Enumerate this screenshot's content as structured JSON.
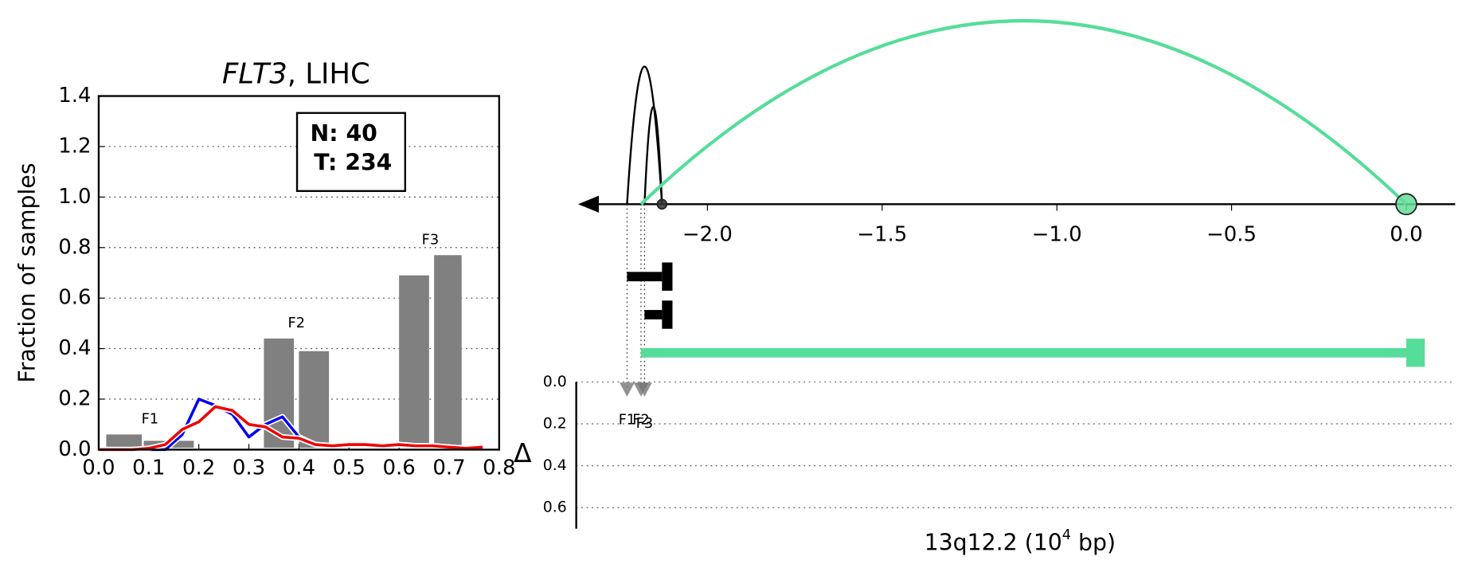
{
  "chart_data": [
    {
      "type": "histogram_overlay",
      "title_gene": "FLT3",
      "title_rest": ", LIHC",
      "y_label": "Fraction of samples",
      "xlim": [
        0,
        0.8
      ],
      "xticks": [
        {
          "value": 0,
          "label": "0.0"
        },
        {
          "value": 0.1,
          "label": "0.1"
        },
        {
          "value": 0.2,
          "label": "0.2"
        },
        {
          "value": 0.3,
          "label": "0.3"
        },
        {
          "value": 0.4,
          "label": "0.4"
        },
        {
          "value": 0.5,
          "label": "0.5"
        },
        {
          "value": 0.6,
          "label": "0.6"
        },
        {
          "value": 0.7,
          "label": "0.7"
        },
        {
          "value": 0.8,
          "label": "0.8"
        }
      ],
      "ylim": [
        0,
        1.4
      ],
      "yticks": [
        {
          "value": 0,
          "label": "0.0"
        },
        {
          "value": 0.2,
          "label": "0.2"
        },
        {
          "value": 0.4,
          "label": "0.4"
        },
        {
          "value": 0.6,
          "label": "0.6"
        },
        {
          "value": 0.8,
          "label": "0.8"
        },
        {
          "value": 1,
          "label": "1.0"
        },
        {
          "value": 1.2,
          "label": "1.2"
        },
        {
          "value": 1.4,
          "label": "1.4"
        }
      ],
      "grid": true,
      "bars": {
        "color": "#808080",
        "x_start": [
          0.015,
          0.09,
          0.33,
          0.4,
          0.6,
          0.67
        ],
        "x_end": [
          0.086,
          0.19,
          0.39,
          0.46,
          0.66,
          0.725
        ],
        "values": [
          0.06,
          0.035,
          0.44,
          0.39,
          0.69,
          0.77
        ]
      },
      "feature_labels": [
        "F1",
        "F2",
        "F3"
      ],
      "series": [
        {
          "color": "#0000ee",
          "x": [
            0,
            0.033,
            0.067,
            0.1,
            0.133,
            0.167,
            0.2,
            0.233,
            0.267,
            0.3,
            0.333,
            0.367,
            0.4,
            0.433,
            0.467,
            0.5,
            0.533,
            0.567,
            0.6,
            0.633,
            0.667,
            0.7,
            0.733,
            0.767
          ],
          "values": [
            0,
            0,
            0,
            0,
            0,
            0.06,
            0.2,
            0.175,
            0.14,
            0.05,
            0.1,
            0.13,
            0.05,
            0.02,
            0.015,
            0.02,
            0.02,
            0.015,
            0.02,
            0.015,
            0.015,
            0.01,
            0.005,
            0.01
          ]
        },
        {
          "color": "#ee0000",
          "x": [
            0,
            0.033,
            0.067,
            0.1,
            0.133,
            0.167,
            0.2,
            0.233,
            0.267,
            0.3,
            0.333,
            0.367,
            0.4,
            0.433,
            0.467,
            0.5,
            0.533,
            0.567,
            0.6,
            0.633,
            0.667,
            0.7,
            0.733,
            0.767
          ],
          "values": [
            0,
            0,
            0,
            0.005,
            0.02,
            0.08,
            0.11,
            0.17,
            0.155,
            0.1,
            0.09,
            0.05,
            0.045,
            0.02,
            0.015,
            0.02,
            0.02,
            0.015,
            0.02,
            0.015,
            0.015,
            0.01,
            0.005,
            0.01
          ]
        }
      ],
      "legend_box": [
        "N: 40",
        "T: 234"
      ]
    },
    {
      "type": "arc",
      "xlim": [
        -2.37,
        0.14
      ],
      "xticks": [
        {
          "value": -2,
          "label": "−2.0"
        },
        {
          "value": -1.5,
          "label": "−1.5"
        },
        {
          "value": -1,
          "label": "−1.0"
        },
        {
          "value": -0.5,
          "label": "−0.5"
        },
        {
          "value": 0,
          "label": "0.0"
        }
      ],
      "links": [
        {
          "start": -2.23,
          "end": -2.13,
          "color": "#000000"
        },
        {
          "start": -2.18,
          "end": -2.13,
          "color": "#000000"
        },
        {
          "start": -2.19,
          "end": 0,
          "color": "#55dd99"
        }
      ],
      "anchors": [
        {
          "x": -2.13,
          "color": "#333333"
        },
        {
          "x": 0,
          "color": "#66dd99"
        }
      ],
      "transcripts": [
        {
          "start": -2.23,
          "end": -2.13,
          "block_start": -2.13,
          "block_end": -2.1,
          "color": "#000000"
        },
        {
          "start": -2.18,
          "end": -2.13,
          "block_start": -2.13,
          "block_end": -2.1,
          "color": "#000000"
        },
        {
          "start": -2.19,
          "end": 0.008,
          "block_start": 0,
          "block_end": 0.053,
          "color": "#55dd99"
        }
      ],
      "features": {
        "labels": [
          "F1",
          "F2",
          "F3"
        ],
        "x": [
          -2.23,
          -2.19,
          -2.18
        ],
        "values": [
          0.03,
          0.03,
          0.03
        ],
        "color": "#777777"
      },
      "ylim": [
        0,
        0.7
      ],
      "yticks": [
        {
          "value": 0,
          "label": "0.0"
        },
        {
          "value": 0.2,
          "label": "0.2"
        },
        {
          "value": 0.4,
          "label": "0.4"
        },
        {
          "value": 0.6,
          "label": "0.6"
        }
      ],
      "y_label": "Δ",
      "xlabel_prefix": "13q12.2 (10",
      "xlabel_exp": "4",
      "xlabel_suffix": " bp)"
    }
  ]
}
